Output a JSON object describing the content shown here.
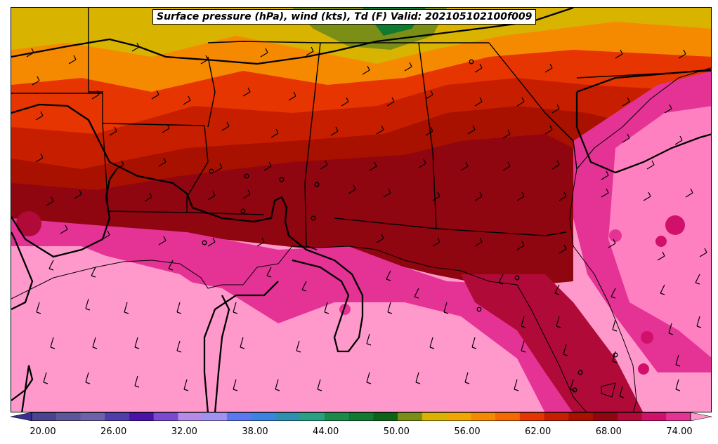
{
  "title": "Surface pressure (hPa), wind (kts), Td (F) Valid: 202105102100f009",
  "colorbar": {
    "ticks": [
      "20.00",
      "26.00",
      "32.00",
      "38.00",
      "44.00",
      "50.00",
      "56.00",
      "62.00",
      "68.00",
      "74.00"
    ],
    "colors": [
      "#3a2f8f",
      "#48448f",
      "#5a579b",
      "#6c62a9",
      "#503caa",
      "#4b12a8",
      "#7a4ad0",
      "#b58ae8",
      "#9f92f0",
      "#5a78f0",
      "#3a83e0",
      "#2f8fb0",
      "#2aa082",
      "#1d8a4a",
      "#107a30",
      "#0d6416",
      "#7b8f16",
      "#d8b300",
      "#f0a800",
      "#f58a00",
      "#f56a00",
      "#e63500",
      "#c81e00",
      "#a81000",
      "#8f0510",
      "#b00a38",
      "#d0106a",
      "#e53295",
      "#ff99cc"
    ]
  }
}
